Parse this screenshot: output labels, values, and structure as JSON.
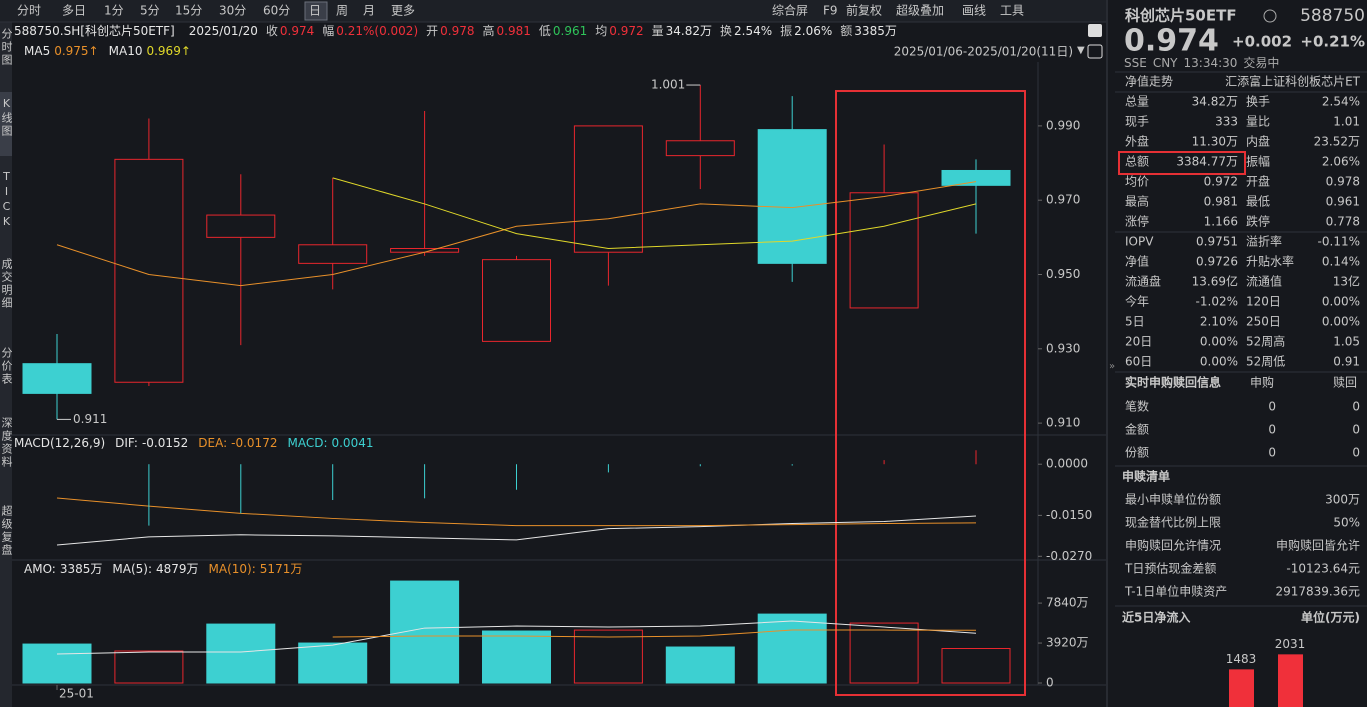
{
  "toolbar": {
    "periods": [
      "分时",
      "多日",
      "1分",
      "5分",
      "15分",
      "30分",
      "60分",
      "日",
      "周",
      "月",
      "更多"
    ],
    "actions": [
      "综合屏",
      "F9",
      "前复权",
      "超级叠加",
      "画线",
      "工具"
    ]
  },
  "side_tabs": [
    "分时图",
    "K线图",
    "TICK",
    "成交明细",
    "分价表",
    "深度资料",
    "超级复盘"
  ],
  "info_line": {
    "code": "588750.SH[科创芯片50ETF]",
    "date": "2025/01/20",
    "items": [
      {
        "label": "收",
        "value": "0.974",
        "color": "#f0303a"
      },
      {
        "label": "幅",
        "value": "0.21%(0.002)",
        "color": "#f0303a"
      },
      {
        "label": "开",
        "value": "0.978",
        "color": "#f0303a"
      },
      {
        "label": "高",
        "value": "0.981",
        "color": "#f0303a"
      },
      {
        "label": "低",
        "value": "0.961",
        "color": "#2fc45a"
      },
      {
        "label": "均",
        "value": "0.972",
        "color": "#f0303a"
      },
      {
        "label": "量",
        "value": "34.82万",
        "color": "#e6e6e6"
      },
      {
        "label": "换",
        "value": "2.54%",
        "color": "#e6e6e6"
      },
      {
        "label": "振",
        "value": "2.06%",
        "color": "#e6e6e6"
      },
      {
        "label": "额",
        "value": "3385万",
        "color": "#e6e6e6"
      }
    ]
  },
  "range_label": "2025/01/06-2025/01/20(11日)",
  "quote": {
    "name": "科创芯片50ETF",
    "code": "588750",
    "price": "0.974",
    "change": "+0.002",
    "pct": "+0.21%",
    "exchange": "SSE",
    "currency": "CNY",
    "time": "13:34:30",
    "status": "交易中"
  },
  "nav_row": [
    "净值走势",
    "汇添富上证科创板芯片ET"
  ],
  "stats": [
    [
      {
        "label": "总量",
        "value": "34.82万"
      },
      {
        "label": "换手",
        "value": "2.54%"
      }
    ],
    [
      {
        "label": "现手",
        "value": "333"
      },
      {
        "label": "量比",
        "value": "1.01"
      }
    ],
    [
      {
        "label": "外盘",
        "value": "11.30万",
        "color": "#f0303a"
      },
      {
        "label": "内盘",
        "value": "23.52万",
        "color": "#2fc45a"
      }
    ],
    [
      {
        "label": "总额",
        "value": "3384.77万"
      },
      {
        "label": "振幅",
        "value": "2.06%"
      }
    ],
    [
      {
        "label": "均价",
        "value": "0.972",
        "color": "#f0303a"
      },
      {
        "label": "开盘",
        "value": "0.978",
        "color": "#f0303a"
      }
    ],
    [
      {
        "label": "最高",
        "value": "0.981",
        "color": "#f0303a"
      },
      {
        "label": "最低",
        "value": "0.961",
        "color": "#2fc45a"
      }
    ],
    [
      {
        "label": "涨停",
        "value": "1.166",
        "color": "#f0303a"
      },
      {
        "label": "跌停",
        "value": "0.778",
        "color": "#2fc45a"
      }
    ],
    [
      {
        "label": "IOPV",
        "value": "0.9751"
      },
      {
        "label": "溢折率",
        "value": "-0.11%",
        "color": "#2fc45a"
      }
    ],
    [
      {
        "label": "净值",
        "value": "0.9726",
        "color": "#f0303a"
      },
      {
        "label": "升贴水率",
        "value": "0.14%",
        "color": "#f0303a"
      }
    ],
    [
      {
        "label": "流通盘",
        "value": "13.69亿"
      },
      {
        "label": "流通值",
        "value": "13亿"
      }
    ],
    [
      {
        "label": "今年",
        "value": "-1.02%",
        "color": "#2fc45a"
      },
      {
        "label": "120日",
        "value": "0.00%"
      }
    ],
    [
      {
        "label": "5日",
        "value": "2.10%",
        "color": "#f0303a"
      },
      {
        "label": "250日",
        "value": "0.00%"
      }
    ],
    [
      {
        "label": "20日",
        "value": "0.00%"
      },
      {
        "label": "52周高",
        "value": "1.05"
      }
    ],
    [
      {
        "label": "60日",
        "value": "0.00%"
      },
      {
        "label": "52周低",
        "value": "0.91"
      }
    ]
  ],
  "redemption": {
    "header": [
      "实时申购赎回信息",
      "申购",
      "赎回"
    ],
    "rows": [
      [
        "笔数",
        "0",
        "0"
      ],
      [
        "金额",
        "0",
        "0"
      ],
      [
        "份额",
        "0",
        "0"
      ]
    ]
  },
  "list": {
    "title": "申赎清单",
    "rows": [
      [
        "最小申赎单位份额",
        "300万"
      ],
      [
        "现金替代比例上限",
        "50%"
      ],
      [
        "申购赎回允许情况",
        "申购赎回皆允许"
      ],
      [
        "T日预估现金差额",
        "-10123.64元"
      ],
      [
        "T-1日单位申赎资产",
        "2917839.36元"
      ]
    ]
  },
  "chart_data": [
    {
      "type": "candlestick",
      "up_color": "#e8262d",
      "down_color": "#3dd0d1",
      "open": [
        0.926,
        0.921,
        0.96,
        0.953,
        0.956,
        0.932,
        0.956,
        0.982,
        0.989,
        0.941,
        0.978
      ],
      "high": [
        0.934,
        0.992,
        0.977,
        0.976,
        0.994,
        0.955,
        0.99,
        1.001,
        0.998,
        0.985,
        0.981
      ],
      "low": [
        0.911,
        0.92,
        0.931,
        0.946,
        0.955,
        0.932,
        0.947,
        0.973,
        0.948,
        0.941,
        0.961
      ],
      "close": [
        0.918,
        0.981,
        0.966,
        0.958,
        0.957,
        0.954,
        0.99,
        0.986,
        0.953,
        0.972,
        0.974
      ],
      "max_label": "1.001",
      "min_label": "0.911",
      "ylim": [
        0.9068,
        1.0072
      ],
      "yticks": [
        {
          "value": 0.91,
          "label": "0.910"
        },
        {
          "value": 0.93,
          "label": "0.930"
        },
        {
          "value": 0.95,
          "label": "0.950"
        },
        {
          "value": 0.97,
          "label": "0.970"
        },
        {
          "value": 0.99,
          "label": "0.990"
        }
      ],
      "series": [
        {
          "name": "MA5",
          "color": "#e8902a",
          "value_label": "0.975↑",
          "values": [
            0.958,
            0.95,
            0.947,
            0.95,
            0.956,
            0.963,
            0.965,
            0.969,
            0.968,
            0.971,
            0.975
          ]
        },
        {
          "name": "MA10",
          "color": "#e0d82a",
          "value_label": "0.969↑",
          "values": [
            null,
            null,
            null,
            0.976,
            0.969,
            0.961,
            0.957,
            0.958,
            0.959,
            0.963,
            0.969
          ]
        }
      ]
    },
    {
      "type": "macd",
      "title": "MACD(12,26,9)",
      "up_color": "#e8262d",
      "down_color": "#3dd0d1",
      "ylim": [
        -0.0275,
        0.0027
      ],
      "yticks": [
        {
          "value": 0,
          "label": "0.0000"
        },
        {
          "value": -0.015,
          "label": "-0.0150"
        },
        {
          "value": -0.027,
          "label": "-0.0270"
        }
      ],
      "series": [
        {
          "name": "DIF:",
          "color": "#e6e6e6",
          "value_label": "-0.0152",
          "values": [
            -0.0237,
            -0.0213,
            -0.0207,
            -0.021,
            -0.0216,
            -0.0222,
            -0.0189,
            -0.0183,
            -0.0174,
            -0.0168,
            -0.0152
          ]
        },
        {
          "name": "DEA:",
          "color": "#e8902a",
          "value_label": "-0.0172",
          "values": [
            -0.0099,
            -0.0123,
            -0.0144,
            -0.0159,
            -0.0171,
            -0.018,
            -0.018,
            -0.018,
            -0.0177,
            -0.0174,
            -0.0172
          ]
        },
        {
          "name": "MACD:",
          "color": "#3dd0d1",
          "kind": "bar",
          "value_label": "0.0041",
          "values": [
            null,
            -0.018,
            -0.0144,
            -0.0105,
            -0.01,
            -0.0075,
            -0.0024,
            -0.0006,
            -0.0004,
            0.0012,
            0.0041
          ]
        }
      ]
    },
    {
      "type": "volume",
      "categories": [
        "25-01",
        null,
        null,
        null,
        null,
        null,
        null,
        null,
        null,
        null,
        null
      ],
      "up_color": "#e8262d",
      "down_color": "#3dd0d1",
      "ylim": [
        0,
        10400
      ],
      "yticks": [
        {
          "value": 7840,
          "label": "7840万"
        },
        {
          "value": 3920,
          "label": "3920万"
        },
        0
      ],
      "series": [
        {
          "name": "AMO:",
          "color": "#e6e6e6",
          "kind": "bar",
          "value_label": "3385万",
          "directions": [
            "down",
            "up",
            "down",
            "down",
            "down",
            "down",
            "up",
            "down",
            "down",
            "up",
            "up"
          ],
          "values": [
            3820,
            3140,
            5780,
            3920,
            10000,
            5100,
            5190,
            3530,
            6760,
            5880,
            3385
          ]
        },
        {
          "name": "MA(5):",
          "color": "#e6e6e6",
          "value_label": "4879万",
          "values": [
            2840,
            3040,
            3040,
            3720,
            5390,
            5590,
            5490,
            5590,
            6080,
            5490,
            4879
          ]
        },
        {
          "name": "MA(10):",
          "color": "#e8902a",
          "value_label": "5171万",
          "values": [
            null,
            null,
            null,
            4508,
            4606,
            4606,
            4508,
            4606,
            5194,
            5194,
            5171
          ]
        }
      ]
    },
    {
      "type": "bar",
      "title": "近5日净流入",
      "unit": "单位(万元)",
      "color": "#f0303a",
      "values": [
        1483,
        2031
      ]
    }
  ]
}
